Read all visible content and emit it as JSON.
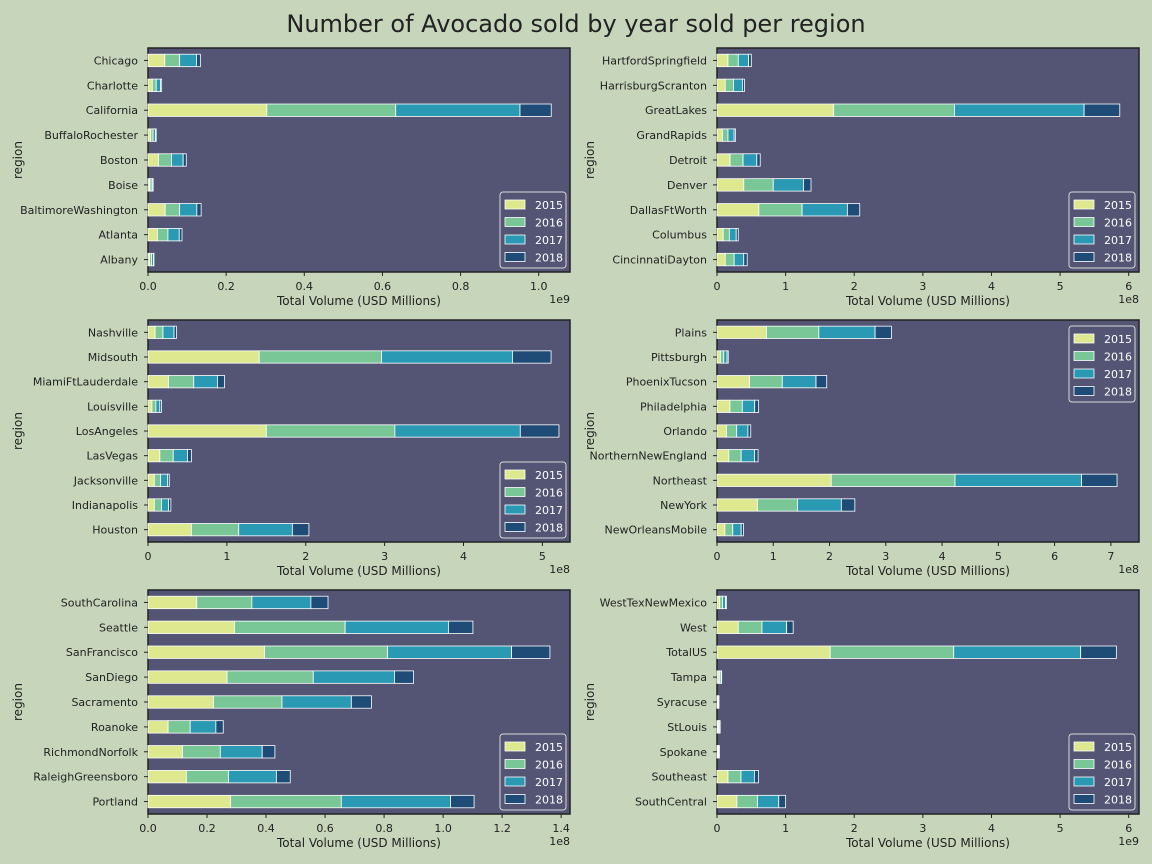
{
  "title": "Number of Avocado sold by year sold per region",
  "colors": {
    "figure_bg": "#c7d5bb",
    "axes_bg": "#545474",
    "years": [
      "#dde88f",
      "#79c797",
      "#2a9ab4",
      "#1f4b77"
    ]
  },
  "chart_data": [
    {
      "type": "bar",
      "orientation": "horizontal",
      "stacked": true,
      "xlabel": "Total Volume (USD Millions)",
      "ylabel": "region",
      "offset_label": "1e9",
      "xlim": [
        0,
        1.08
      ],
      "xticks": [
        0.0,
        0.2,
        0.4,
        0.6,
        0.8,
        1.0
      ],
      "tick_labels": [
        "0.0",
        "0.2",
        "0.4",
        "0.6",
        "0.8",
        "1.0"
      ],
      "legend_loc": "lower right",
      "categories": [
        "Chicago",
        "Charlotte",
        "California",
        "BuffaloRochester",
        "Boston",
        "Boise",
        "BaltimoreWashington",
        "Atlanta",
        "Albany"
      ],
      "series": [
        {
          "name": "2015",
          "values": [
            0.043,
            0.011,
            0.304,
            0.007,
            0.027,
            0.004,
            0.044,
            0.024,
            0.004
          ]
        },
        {
          "name": "2016",
          "values": [
            0.038,
            0.01,
            0.33,
            0.006,
            0.033,
            0.004,
            0.037,
            0.027,
            0.005
          ]
        },
        {
          "name": "2017",
          "values": [
            0.043,
            0.011,
            0.318,
            0.006,
            0.03,
            0.004,
            0.044,
            0.029,
            0.005
          ]
        },
        {
          "name": "2018",
          "values": [
            0.01,
            0.003,
            0.08,
            0.002,
            0.008,
            0.001,
            0.011,
            0.007,
            0.001
          ]
        }
      ]
    },
    {
      "type": "bar",
      "orientation": "horizontal",
      "stacked": true,
      "xlabel": "Total Volume (USD Millions)",
      "ylabel": "region",
      "offset_label": "1e8",
      "xlim": [
        0,
        6.15
      ],
      "xticks": [
        0,
        1,
        2,
        3,
        4,
        5,
        6
      ],
      "tick_labels": [
        "0",
        "1",
        "2",
        "3",
        "4",
        "5",
        "6"
      ],
      "legend_loc": "lower right",
      "categories": [
        "HartfordSpringfield",
        "HarrisburgScranton",
        "GreatLakes",
        "GrandRapids",
        "Detroit",
        "Denver",
        "DallasFtWorth",
        "Columbus",
        "CincinnatiDayton"
      ],
      "series": [
        {
          "name": "2015",
          "values": [
            0.16,
            0.12,
            1.7,
            0.08,
            0.19,
            0.39,
            0.61,
            0.09,
            0.12
          ]
        },
        {
          "name": "2016",
          "values": [
            0.15,
            0.12,
            1.76,
            0.08,
            0.19,
            0.43,
            0.63,
            0.09,
            0.13
          ]
        },
        {
          "name": "2017",
          "values": [
            0.15,
            0.13,
            1.89,
            0.09,
            0.2,
            0.44,
            0.66,
            0.1,
            0.14
          ]
        },
        {
          "name": "2018",
          "values": [
            0.04,
            0.03,
            0.52,
            0.02,
            0.05,
            0.11,
            0.18,
            0.03,
            0.05
          ]
        }
      ]
    },
    {
      "type": "bar",
      "orientation": "horizontal",
      "stacked": true,
      "xlabel": "Total Volume (USD Millions)",
      "ylabel": "region",
      "offset_label": "1e8",
      "xlim": [
        0,
        5.35
      ],
      "xticks": [
        0,
        1,
        2,
        3,
        4,
        5
      ],
      "tick_labels": [
        "0",
        "1",
        "2",
        "3",
        "4",
        "5"
      ],
      "legend_loc": "lower right",
      "categories": [
        "Nashville",
        "Midsouth",
        "MiamiFtLauderdale",
        "Louisville",
        "LosAngeles",
        "LasVegas",
        "Jacksonville",
        "Indianapolis",
        "Houston"
      ],
      "series": [
        {
          "name": "2015",
          "values": [
            0.09,
            1.41,
            0.26,
            0.05,
            1.5,
            0.15,
            0.08,
            0.08,
            0.55
          ]
        },
        {
          "name": "2016",
          "values": [
            0.1,
            1.55,
            0.32,
            0.05,
            1.63,
            0.17,
            0.08,
            0.09,
            0.6
          ]
        },
        {
          "name": "2017",
          "values": [
            0.14,
            1.66,
            0.3,
            0.05,
            1.59,
            0.18,
            0.09,
            0.09,
            0.68
          ]
        },
        {
          "name": "2018",
          "values": [
            0.03,
            0.49,
            0.09,
            0.02,
            0.49,
            0.05,
            0.02,
            0.03,
            0.21
          ]
        }
      ]
    },
    {
      "type": "bar",
      "orientation": "horizontal",
      "stacked": true,
      "xlabel": "Total Volume (USD Millions)",
      "ylabel": "region",
      "offset_label": "1e8",
      "xlim": [
        0,
        7.5
      ],
      "xticks": [
        0,
        1,
        2,
        3,
        4,
        5,
        6,
        7
      ],
      "tick_labels": [
        "0",
        "1",
        "2",
        "3",
        "4",
        "5",
        "6",
        "7"
      ],
      "legend_loc": "upper right",
      "categories": [
        "Plains",
        "Pittsburgh",
        "PhoenixTucson",
        "Philadelphia",
        "Orlando",
        "NorthernNewEngland",
        "Northeast",
        "NewYork",
        "NewOrleansMobile"
      ],
      "series": [
        {
          "name": "2015",
          "values": [
            0.88,
            0.06,
            0.58,
            0.23,
            0.17,
            0.21,
            2.03,
            0.72,
            0.14
          ]
        },
        {
          "name": "2016",
          "values": [
            0.93,
            0.06,
            0.58,
            0.22,
            0.18,
            0.22,
            2.2,
            0.71,
            0.14
          ]
        },
        {
          "name": "2017",
          "values": [
            1.0,
            0.06,
            0.6,
            0.22,
            0.2,
            0.24,
            2.25,
            0.78,
            0.15
          ]
        },
        {
          "name": "2018",
          "values": [
            0.29,
            0.02,
            0.19,
            0.07,
            0.05,
            0.06,
            0.63,
            0.24,
            0.04
          ]
        }
      ]
    },
    {
      "type": "bar",
      "orientation": "horizontal",
      "stacked": true,
      "xlabel": "Total Volume (USD Millions)",
      "ylabel": "region",
      "offset_label": "1e8",
      "xlim": [
        0,
        1.43
      ],
      "xticks": [
        0.0,
        0.2,
        0.4,
        0.6,
        0.8,
        1.0,
        1.2,
        1.4
      ],
      "tick_labels": [
        "0.0",
        "0.2",
        "0.4",
        "0.6",
        "0.8",
        "1.0",
        "1.2",
        "1.4"
      ],
      "legend_loc": "lower right",
      "categories": [
        "SouthCarolina",
        "Seattle",
        "SanFrancisco",
        "SanDiego",
        "Sacramento",
        "Roanoke",
        "RichmondNorfolk",
        "RaleighGreensboro",
        "Portland"
      ],
      "series": [
        {
          "name": "2015",
          "values": [
            0.165,
            0.293,
            0.395,
            0.268,
            0.222,
            0.068,
            0.117,
            0.13,
            0.28
          ]
        },
        {
          "name": "2016",
          "values": [
            0.187,
            0.375,
            0.417,
            0.292,
            0.232,
            0.075,
            0.128,
            0.143,
            0.375
          ]
        },
        {
          "name": "2017",
          "values": [
            0.2,
            0.35,
            0.42,
            0.275,
            0.235,
            0.087,
            0.142,
            0.162,
            0.37
          ]
        },
        {
          "name": "2018",
          "values": [
            0.058,
            0.083,
            0.13,
            0.065,
            0.068,
            0.025,
            0.043,
            0.047,
            0.08
          ]
        }
      ]
    },
    {
      "type": "bar",
      "orientation": "horizontal",
      "stacked": true,
      "xlabel": "Total Volume (USD Millions)",
      "ylabel": "region",
      "offset_label": "1e9",
      "xlim": [
        0,
        6.15
      ],
      "xticks": [
        0,
        1,
        2,
        3,
        4,
        5,
        6
      ],
      "tick_labels": [
        "0",
        "1",
        "2",
        "3",
        "4",
        "5",
        "6"
      ],
      "legend_loc": "lower right",
      "categories": [
        "WestTexNewMexico",
        "West",
        "TotalUS",
        "Tampa",
        "Syracuse",
        "StLouis",
        "Spokane",
        "Southeast",
        "SouthCentral"
      ],
      "series": [
        {
          "name": "2015",
          "values": [
            0.04,
            0.31,
            1.65,
            0.02,
            0.007,
            0.012,
            0.009,
            0.16,
            0.29
          ]
        },
        {
          "name": "2016",
          "values": [
            0.042,
            0.345,
            1.8,
            0.02,
            0.007,
            0.013,
            0.009,
            0.19,
            0.3
          ]
        },
        {
          "name": "2017",
          "values": [
            0.043,
            0.36,
            1.85,
            0.021,
            0.008,
            0.014,
            0.01,
            0.195,
            0.31
          ]
        },
        {
          "name": "2018",
          "values": [
            0.015,
            0.095,
            0.52,
            0.006,
            0.002,
            0.004,
            0.003,
            0.06,
            0.1
          ]
        }
      ]
    }
  ]
}
